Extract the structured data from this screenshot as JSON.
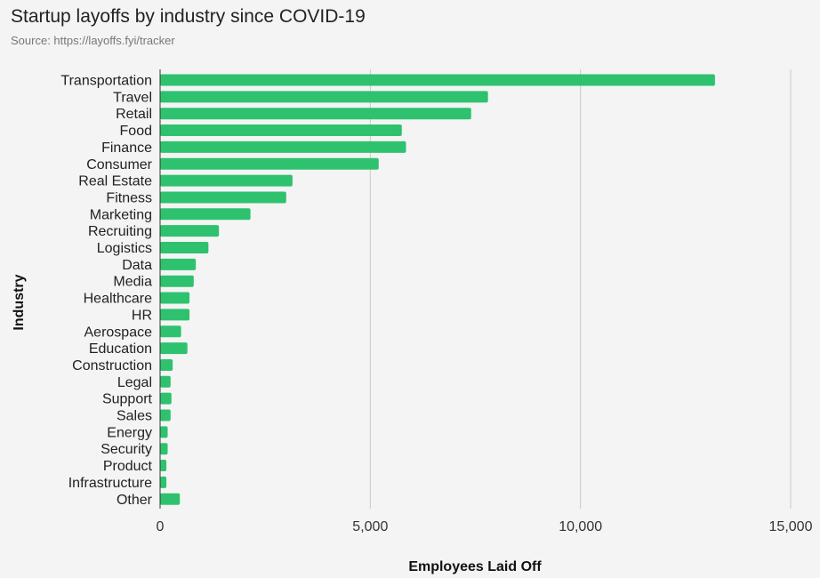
{
  "chart_data": {
    "type": "bar",
    "orientation": "horizontal",
    "title": "Startup layoffs by industry since COVID-19",
    "subtitle": "Source: https://layoffs.fyi/tracker",
    "xlabel": "Employees Laid Off",
    "ylabel": "Industry",
    "xlim": [
      0,
      15000
    ],
    "x_ticks": [
      0,
      5000,
      10000,
      15000
    ],
    "x_tick_labels": [
      "0",
      "5,000",
      "10,000",
      "15,000"
    ],
    "grid": "vertical",
    "legend": "none",
    "bar_color": "#2ec26e",
    "categories": [
      "Transportation",
      "Travel",
      "Retail",
      "Food",
      "Finance",
      "Consumer",
      "Real Estate",
      "Fitness",
      "Marketing",
      "Recruiting",
      "Logistics",
      "Data",
      "Media",
      "Healthcare",
      "HR",
      "Aerospace",
      "Education",
      "Construction",
      "Legal",
      "Support",
      "Sales",
      "Energy",
      "Security",
      "Product",
      "Infrastructure",
      "Other"
    ],
    "values": [
      13200,
      7800,
      7400,
      5750,
      5850,
      5200,
      3150,
      3000,
      2150,
      1400,
      1150,
      850,
      800,
      700,
      700,
      500,
      650,
      300,
      250,
      270,
      250,
      180,
      180,
      150,
      150,
      470
    ]
  }
}
